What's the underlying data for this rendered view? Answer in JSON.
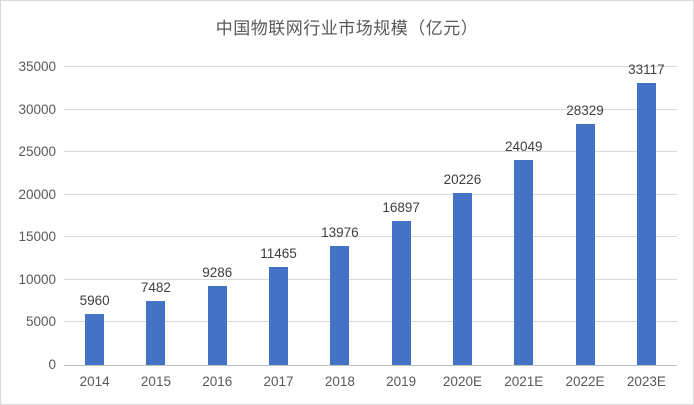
{
  "title": "中国物联网行业市场规模（亿元）",
  "colors": {
    "bar": "#4472C4",
    "gridline": "#D9D9D9",
    "axis_line": "#BFBFBF",
    "title_text": "#595959",
    "tick_text": "#595959",
    "value_label_text": "#404040",
    "border": "#D9D9D9",
    "background": "#FFFFFF"
  },
  "chart_data": {
    "type": "bar",
    "title": "中国物联网行业市场规模（亿元）",
    "categories": [
      "2014",
      "2015",
      "2016",
      "2017",
      "2018",
      "2019",
      "2020E",
      "2021E",
      "2022E",
      "2023E"
    ],
    "values": [
      5960,
      7482,
      9286,
      11465,
      13976,
      16897,
      20226,
      24049,
      28329,
      33117
    ],
    "xlabel": "",
    "ylabel": "",
    "ylim": [
      0,
      35000
    ],
    "ytick_step": 5000,
    "yticks": [
      0,
      5000,
      10000,
      15000,
      20000,
      25000,
      30000,
      35000
    ],
    "grid": true,
    "legend_position": "none",
    "data_labels": true
  }
}
